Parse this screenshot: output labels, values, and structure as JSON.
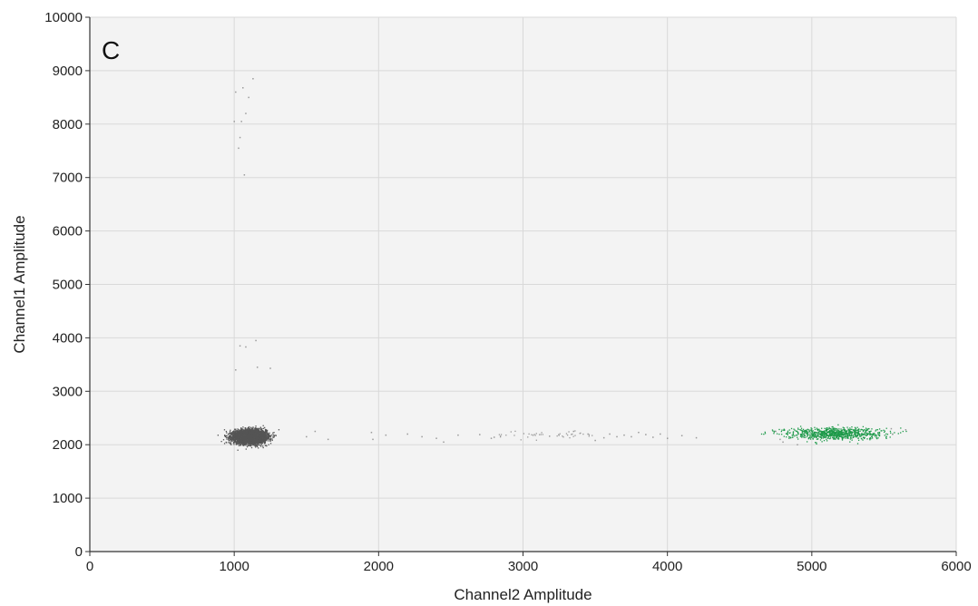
{
  "chart_data": {
    "type": "scatter",
    "panel_label": "C",
    "xlabel": "Channel2 Amplitude",
    "ylabel": "Channel1 Amplitude",
    "xlim": [
      0,
      6000
    ],
    "ylim": [
      0,
      10000
    ],
    "x_ticks": [
      0,
      1000,
      2000,
      3000,
      4000,
      5000,
      6000
    ],
    "y_ticks": [
      0,
      1000,
      2000,
      3000,
      4000,
      5000,
      6000,
      7000,
      8000,
      9000,
      10000
    ],
    "grid": true,
    "colors": {
      "plot_background": "#f3f3f3",
      "grid": "#d9d9d9",
      "negative": "#555555",
      "positive": "#1e9a4a",
      "scatter": "#9a9a9a"
    },
    "series": [
      {
        "color": "#555555",
        "cluster": {
          "center": [
            1110,
            2150
          ],
          "spread": [
            55,
            60
          ],
          "count": 5000
        }
      },
      {
        "color": "#1e9a4a",
        "cluster": {
          "center": [
            5150,
            2210
          ],
          "spread": [
            170,
            55
          ],
          "count": 800
        }
      },
      {
        "color": "#9a9a9a",
        "cluster": {
          "center": [
            3150,
            2180
          ],
          "spread": [
            180,
            45
          ],
          "count": 45
        }
      },
      {
        "color": "#9a9a9a",
        "points": [
          [
            1010,
            8600
          ],
          [
            1060,
            8680
          ],
          [
            1130,
            8850
          ],
          [
            1100,
            8500
          ],
          [
            1080,
            8200
          ],
          [
            1000,
            8050
          ],
          [
            1050,
            8050
          ],
          [
            1040,
            7750
          ],
          [
            1030,
            7550
          ],
          [
            1070,
            7050
          ],
          [
            1010,
            3400
          ],
          [
            1040,
            3850
          ],
          [
            1080,
            3830
          ],
          [
            1150,
            3950
          ],
          [
            1160,
            3450
          ],
          [
            1250,
            3430
          ],
          [
            1500,
            2150
          ],
          [
            1560,
            2250
          ],
          [
            1650,
            2100
          ],
          [
            1950,
            2230
          ],
          [
            1960,
            2100
          ],
          [
            2050,
            2180
          ],
          [
            2200,
            2200
          ],
          [
            2300,
            2150
          ],
          [
            2400,
            2120
          ],
          [
            2450,
            2050
          ],
          [
            2550,
            2180
          ],
          [
            2700,
            2190
          ],
          [
            2780,
            2120
          ],
          [
            2800,
            2140
          ],
          [
            3350,
            2250
          ],
          [
            3450,
            2200
          ],
          [
            3500,
            2080
          ],
          [
            3560,
            2130
          ],
          [
            3600,
            2200
          ],
          [
            3650,
            2150
          ],
          [
            3700,
            2180
          ],
          [
            3750,
            2150
          ],
          [
            3800,
            2230
          ],
          [
            3850,
            2190
          ],
          [
            3900,
            2140
          ],
          [
            3950,
            2200
          ],
          [
            4000,
            2120
          ],
          [
            4100,
            2170
          ],
          [
            4200,
            2130
          ],
          [
            4750,
            2250
          ],
          [
            4780,
            2100
          ],
          [
            4800,
            2050
          ],
          [
            4900,
            2000
          ],
          [
            5550,
            2300
          ],
          [
            5650,
            2280
          ],
          [
            5560,
            2200
          ]
        ]
      }
    ]
  }
}
